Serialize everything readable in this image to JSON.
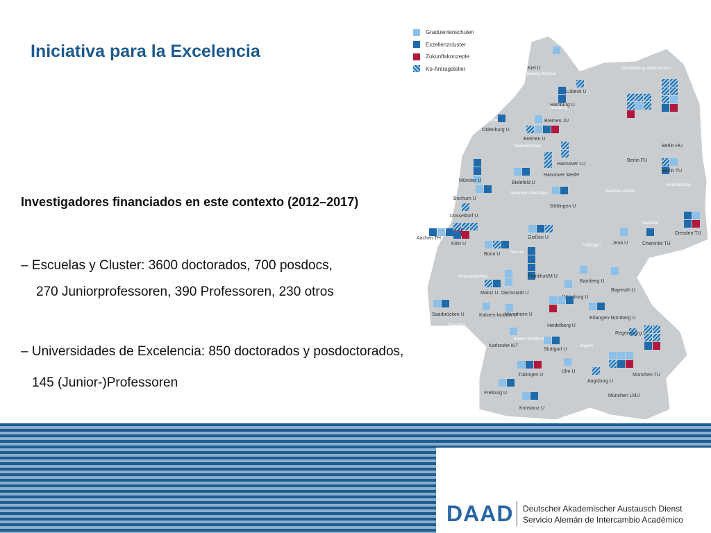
{
  "slide": {
    "title": "Iniciativa para la Excelencia",
    "subtitle": "Investigadores financiados en este contexto (2012–2017)",
    "lines": [
      "– Escuelas y Cluster: 3600 doctorados, 700 posdocs,",
      "270 Juniorprofessoren, 390 Professoren, 230 otros",
      "– Universidades de Excelencia: 850 doctorados y posdoctorados,",
      "145 (Junior-)Professoren"
    ]
  },
  "legend": [
    {
      "label": "Graduiertenschulen",
      "icon": "solid-light-blue"
    },
    {
      "label": "Exzellenzcluster",
      "icon": "solid-dark-blue"
    },
    {
      "label": "Zukunftskonzepte",
      "icon": "solid-red"
    },
    {
      "label": "Ko-Antragsteller",
      "icon": "hatched-blue"
    }
  ],
  "colors": {
    "graduate": "#8cc0e8",
    "cluster": "#1f6aaa",
    "concept": "#b2183c",
    "hatch": "#1f6aaa",
    "map": "#c9cdd0",
    "brand": "#2a66a6"
  },
  "states": [
    "Schleswig-Holstein",
    "Mecklenburg-Vorpommern",
    "Hamburg",
    "Bremen",
    "Niedersachsen",
    "Brandenburg",
    "Sachsen-Anhalt",
    "Nordrhein-Westfalen",
    "Sachsen",
    "Hessen",
    "Thüringen",
    "Rheinland-Pfalz",
    "Saarland",
    "Baden-Württemberg",
    "Bayern"
  ],
  "universities": [
    {
      "name": "Kiel U",
      "boxes": [
        "gk"
      ]
    },
    {
      "name": "Lübeck U",
      "boxes": [
        "k"
      ]
    },
    {
      "name": "Hamburg U",
      "boxes": [
        "e",
        "e"
      ]
    },
    {
      "name": "Bremen JU",
      "boxes": [
        "g"
      ]
    },
    {
      "name": "Oldenburg U",
      "boxes": [
        "e"
      ]
    },
    {
      "name": "Bremen U",
      "boxes": [
        "k",
        "g",
        "e",
        "z"
      ]
    },
    {
      "name": "Berlin HU",
      "boxes": [
        "k",
        "k",
        "k",
        "k",
        "k",
        "g",
        "e",
        "z"
      ]
    },
    {
      "name": "Berlin FU",
      "boxes": [
        "k",
        "k",
        "k",
        "k",
        "g",
        "k",
        "z"
      ]
    },
    {
      "name": "Berlin TU",
      "boxes": [
        "k",
        "g",
        "e"
      ]
    },
    {
      "name": "Hannover LU",
      "boxes": [
        "k",
        "k"
      ]
    },
    {
      "name": "Hannover MedH",
      "boxes": [
        "k",
        "k"
      ]
    },
    {
      "name": "Münster U",
      "boxes": [
        "e",
        "e",
        "g"
      ]
    },
    {
      "name": "Bielefeld U",
      "boxes": [
        "g",
        "e"
      ]
    },
    {
      "name": "Bochum U",
      "boxes": [
        "g",
        "e"
      ]
    },
    {
      "name": "Göttingen U",
      "boxes": [
        "g",
        "e"
      ]
    },
    {
      "name": "Düsseldorf U",
      "boxes": [
        "k"
      ]
    },
    {
      "name": "Aachen TH",
      "boxes": [
        "e",
        "g",
        "e",
        "z"
      ]
    },
    {
      "name": "Köln U",
      "boxes": [
        "k",
        "k",
        "k",
        "e",
        "z"
      ]
    },
    {
      "name": "Gießen U",
      "boxes": [
        "g",
        "e",
        "k"
      ]
    },
    {
      "name": "Bonn U",
      "boxes": [
        "g",
        "k",
        "e"
      ]
    },
    {
      "name": "Jena U",
      "boxes": [
        "g"
      ]
    },
    {
      "name": "Chemnitz TU",
      "boxes": [
        "e"
      ]
    },
    {
      "name": "Dresden TU",
      "boxes": [
        "e",
        "g",
        "e",
        "z"
      ]
    },
    {
      "name": "Frankfurt/M U",
      "boxes": [
        "e",
        "e",
        "e",
        "e"
      ]
    },
    {
      "name": "Bamberg U",
      "boxes": [
        "g"
      ]
    },
    {
      "name": "Bayreuth U",
      "boxes": [
        "g"
      ]
    },
    {
      "name": "Mainz U",
      "boxes": [
        "k",
        "e"
      ]
    },
    {
      "name": "Darmstadt U",
      "boxes": [
        "g",
        "g"
      ]
    },
    {
      "name": "Würzburg U",
      "boxes": [
        "g"
      ]
    },
    {
      "name": "Saarbrücken U",
      "boxes": [
        "g",
        "e"
      ]
    },
    {
      "name": "Kaisers-lautern U",
      "boxes": [
        "g"
      ]
    },
    {
      "name": "Mannheim U",
      "boxes": [
        "g"
      ]
    },
    {
      "name": "Heidelberg U",
      "boxes": [
        "g",
        "g",
        "e",
        "z"
      ]
    },
    {
      "name": "Erlangen-Nürnberg U",
      "boxes": [
        "g",
        "e"
      ]
    },
    {
      "name": "Regensburg U",
      "boxes": [
        "k"
      ]
    },
    {
      "name": "Karlsruhe KIT",
      "boxes": [
        "g"
      ]
    },
    {
      "name": "Stuttgart U",
      "boxes": [
        "g",
        "e"
      ]
    },
    {
      "name": "Tübingen U",
      "boxes": [
        "g",
        "e",
        "z"
      ]
    },
    {
      "name": "Ulm U",
      "boxes": [
        "g"
      ]
    },
    {
      "name": "München TU",
      "boxes": [
        "k",
        "k",
        "k",
        "k",
        "e",
        "z"
      ]
    },
    {
      "name": "Augsburg U",
      "boxes": [
        "k"
      ]
    },
    {
      "name": "München LMU",
      "boxes": [
        "g",
        "g",
        "g",
        "k",
        "e",
        "z"
      ]
    },
    {
      "name": "Freiburg U",
      "boxes": [
        "g",
        "e"
      ]
    },
    {
      "name": "Konstanz U",
      "boxes": [
        "g",
        "e"
      ]
    }
  ],
  "footer": {
    "logo": "DAAD",
    "line_de": "Deutscher Akademischer Austausch Dienst",
    "line_es": "Servicio Alemán de Intercambio Académico"
  }
}
